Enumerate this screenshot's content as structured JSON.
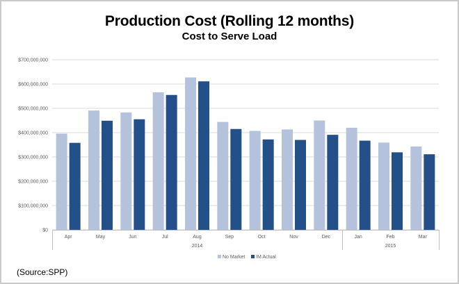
{
  "chart_data": {
    "type": "bar",
    "title": "Production Cost (Rolling 12 months)",
    "subtitle": "Cost to Serve Load",
    "categories": [
      "Apr",
      "May",
      "Jun",
      "Jul",
      "Aug",
      "Sep",
      "Oct",
      "Nov",
      "Dec",
      "Jan",
      "Feb",
      "Mar"
    ],
    "groups": [
      {
        "label": "2014",
        "start": 0,
        "end": 8
      },
      {
        "label": "2015",
        "start": 9,
        "end": 11
      }
    ],
    "series": [
      {
        "name": "No Market",
        "color": "#b4c3db",
        "values": [
          396000000,
          491000000,
          483000000,
          566000000,
          627000000,
          444000000,
          407000000,
          413000000,
          450000000,
          420000000,
          359000000,
          343000000
        ]
      },
      {
        "name": "IM Actual",
        "color": "#24508a",
        "values": [
          358000000,
          449000000,
          455000000,
          555000000,
          611000000,
          415000000,
          372000000,
          370000000,
          391000000,
          367000000,
          319000000,
          311000000
        ]
      }
    ],
    "y_ticks": [
      "$0",
      "$100,000,000",
      "$200,000,000",
      "$300,000,000",
      "$400,000,000",
      "$500,000,000",
      "$600,000,000",
      "$700,000,000"
    ],
    "ylim": [
      0,
      700000000
    ],
    "grid": true,
    "legend_position": "bottom"
  },
  "source": "(Source:SPP)"
}
